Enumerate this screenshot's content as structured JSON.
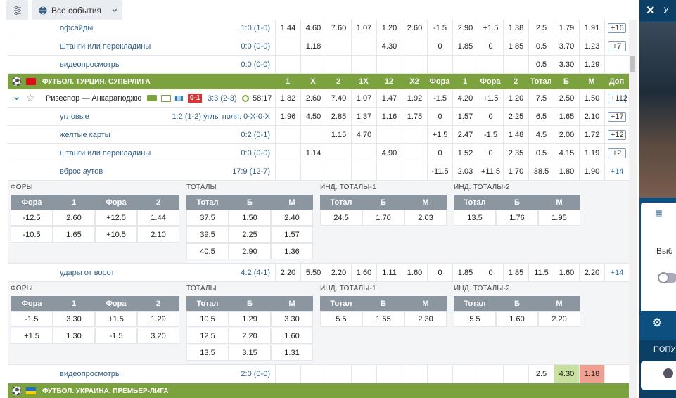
{
  "topbar": {
    "events_label": "Все события"
  },
  "cols": [
    "1",
    "X",
    "2",
    "1X",
    "12",
    "X2",
    "Фора",
    "1",
    "Фора",
    "2",
    "Тотал",
    "Б",
    "М",
    "Доп"
  ],
  "rows_top": [
    {
      "label": "офсайды",
      "score": "1:0  (1-0)",
      "cells": [
        "1.44",
        "4.60",
        "7.60",
        "1.07",
        "1.20",
        "2.60",
        "-1.5",
        "2.90",
        "+1.5",
        "1.38",
        "2.5",
        "1.79",
        "1.91"
      ],
      "more": "+16"
    },
    {
      "label": "штанги или перекладины",
      "score": "0:0  (0-0)",
      "cells": [
        "",
        "1.18",
        "",
        "",
        "4.30",
        "",
        "0",
        "1.85",
        "0",
        "1.85",
        "0.5",
        "3.70",
        "1.23"
      ],
      "more": "+7"
    },
    {
      "label": "видеопросмотры",
      "score": "0:0  (0-0)",
      "cells": [
        "",
        "",
        "",
        "",
        "",
        "",
        "",
        "",
        "",
        "",
        "0.5",
        "3.30",
        "1.29"
      ],
      "more": ""
    }
  ],
  "league1": {
    "name": "ФУТБОЛ. ТУРЦИЯ. СУПЕРЛИГА"
  },
  "match": {
    "teams": "Ризеспор — Анкарагюджю",
    "red": "0-1",
    "score": "3:3  (2-3)",
    "time": "58:17",
    "cells": [
      "1.82",
      "2.60",
      "7.40",
      "1.07",
      "1.47",
      "1.92",
      "-1.5",
      "4.20",
      "+1.5",
      "1.20",
      "7.5",
      "2.50",
      "1.50"
    ],
    "more": "+112"
  },
  "rows_sub": [
    {
      "label": "угловые",
      "score": "1:2  (1-2) углы поля: 0-X-0-X",
      "cells": [
        "1.96",
        "4.50",
        "2.85",
        "1.37",
        "1.16",
        "1.75",
        "0",
        "1.57",
        "0",
        "2.25",
        "6.5",
        "1.65",
        "2.10"
      ],
      "more": "+17"
    },
    {
      "label": "желтые карты",
      "score": "0:2  (0-1)",
      "cells": [
        "",
        "",
        "1.15",
        "4.70",
        "",
        "",
        "+1.5",
        "2.47",
        "-1.5",
        "1.48",
        "4.5",
        "2.00",
        "1.72"
      ],
      "more": "+12"
    },
    {
      "label": "штанги или перекладины",
      "score": "0:0  (0-0)",
      "cells": [
        "",
        "1.14",
        "",
        "",
        "4.90",
        "",
        "0",
        "1.52",
        "0",
        "2.35",
        "0.5",
        "4.15",
        "1.19"
      ],
      "more": "+2"
    },
    {
      "label": "вброс аутов",
      "score": "17:9  (12-7)",
      "cells": [
        "",
        "",
        "",
        "",
        "",
        "",
        "-11.5",
        "2.03",
        "+11.5",
        "1.70",
        "38.5",
        "1.80",
        "1.90"
      ],
      "more": "+14"
    }
  ],
  "panel1": {
    "fory": {
      "title": "ФОРЫ",
      "head": [
        "Фора",
        "1",
        "Фора",
        "2"
      ],
      "rows": [
        [
          "-12.5",
          "2.60",
          "+12.5",
          "1.44"
        ],
        [
          "-10.5",
          "1.65",
          "+10.5",
          "2.10"
        ]
      ]
    },
    "totaly": {
      "title": "ТОТАЛЫ",
      "head": [
        "Тотал",
        "Б",
        "М"
      ],
      "rows": [
        [
          "37.5",
          "1.50",
          "2.40"
        ],
        [
          "39.5",
          "2.25",
          "1.57"
        ],
        [
          "40.5",
          "2.90",
          "1.36"
        ]
      ]
    },
    "ind1": {
      "title": "ИНД. ТОТАЛЫ-1",
      "head": [
        "Тотал",
        "Б",
        "М"
      ],
      "rows": [
        [
          "24.5",
          "1.70",
          "2.03"
        ]
      ]
    },
    "ind2": {
      "title": "ИНД. ТОТАЛЫ-2",
      "head": [
        "Тотал",
        "Б",
        "М"
      ],
      "rows": [
        [
          "13.5",
          "1.76",
          "1.95"
        ]
      ]
    }
  },
  "row_shots": {
    "label": "удары от ворот",
    "score": "4:2  (4-1)",
    "cells": [
      "2.20",
      "5.50",
      "2.20",
      "1.60",
      "1.11",
      "1.60",
      "0",
      "1.85",
      "0",
      "1.85",
      "11.5",
      "1.60",
      "2.20"
    ],
    "more": "+14"
  },
  "panel2": {
    "fory": {
      "title": "ФОРЫ",
      "head": [
        "Фора",
        "1",
        "Фора",
        "2"
      ],
      "rows": [
        [
          "-1.5",
          "3.30",
          "+1.5",
          "1.29"
        ],
        [
          "+1.5",
          "1.30",
          "-1.5",
          "3.20"
        ]
      ]
    },
    "totaly": {
      "title": "ТОТАЛЫ",
      "head": [
        "Тотал",
        "Б",
        "М"
      ],
      "rows": [
        [
          "10.5",
          "1.29",
          "3.30"
        ],
        [
          "12.5",
          "2.20",
          "1.60"
        ],
        [
          "13.5",
          "3.15",
          "1.31"
        ]
      ]
    },
    "ind1": {
      "title": "ИНД. ТОТАЛЫ-1",
      "head": [
        "Тотал",
        "Б",
        "М"
      ],
      "rows": [
        [
          "5.5",
          "1.55",
          "2.30"
        ]
      ]
    },
    "ind2": {
      "title": "ИНД. ТОТАЛЫ-2",
      "head": [
        "Тотал",
        "Б",
        "М"
      ],
      "rows": [
        [
          "5.5",
          "1.60",
          "2.20"
        ]
      ]
    }
  },
  "row_video": {
    "label": "видеопросмотры",
    "score": "2:0  (0-0)",
    "cells": [
      "",
      "",
      "",
      "",
      "",
      "",
      "",
      "",
      "",
      "",
      "2.5",
      "4.30",
      "1.18"
    ],
    "more": ""
  },
  "league2": {
    "name": "ФУТБОЛ. УКРАИНА. ПРЕМЬЕР-ЛИГА"
  },
  "right": {
    "top_label": "У",
    "choose": "Выб",
    "popular": "ПОПУ"
  },
  "colors": {
    "green": "#7ba23f",
    "up": "#c8e0a0",
    "down": "#f0a090",
    "red_badge": "#d33"
  }
}
